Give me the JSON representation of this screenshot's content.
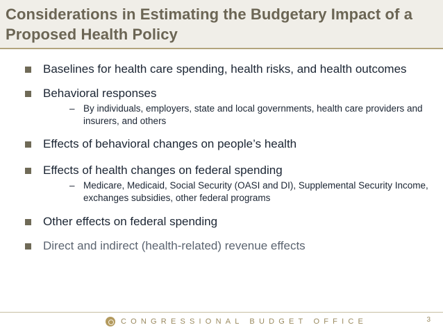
{
  "slide": {
    "title": "Considerations in Estimating the Budgetary Impact of a Proposed Health Policy",
    "bullets": [
      {
        "text": "Baselines for health care spending, health risks, and health outcomes"
      },
      {
        "text": "Behavioral responses",
        "sub": "By individuals, employers, state and local governments, health care providers and insurers, and others"
      },
      {
        "text": "Effects of behavioral changes on people’s health"
      },
      {
        "text": "Effects of  health changes on federal spending",
        "sub": "Medicare, Medicaid, Social Security (OASI and DI), Supplemental Security Income,  exchanges subsidies, other federal programs"
      },
      {
        "text": "Other effects on federal spending"
      },
      {
        "text": "Direct and indirect (health-related) revenue effects"
      }
    ],
    "sub_dash": "–"
  },
  "footer": {
    "organization": "CONGRESSIONAL BUDGET OFFICE",
    "logo_icon": "cbo-logo-icon",
    "page_number": "3"
  },
  "colors": {
    "title": "#6b6554",
    "title_band": "#f0eee8",
    "accent_rule": "#b2a47c",
    "bullet_marker": "#6f6a57",
    "body_text": "#1b2533",
    "muted_text": "#5b6470",
    "footer_text": "#9a8a5f"
  }
}
